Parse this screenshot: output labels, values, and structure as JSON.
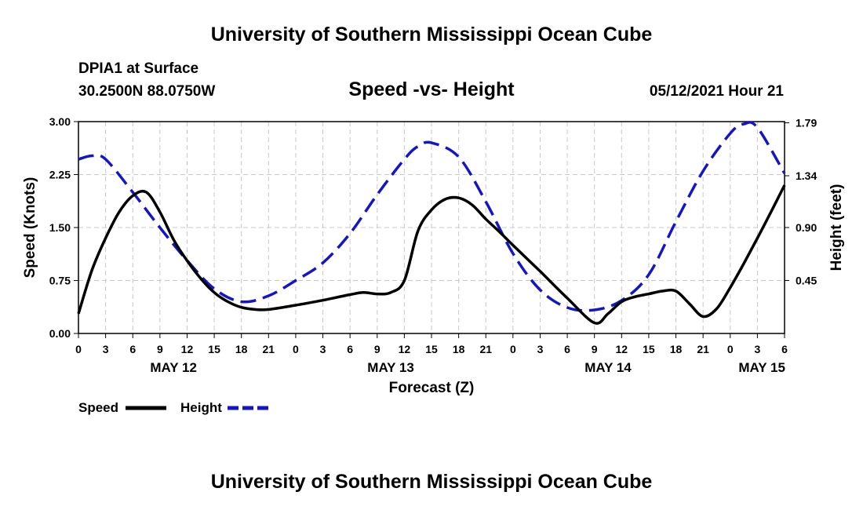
{
  "header": {
    "title": "University of Southern Mississippi Ocean Cube",
    "station": "DPIA1 at Surface",
    "coords": "30.2500N  88.0750W",
    "chart_title": "Speed -vs- Height",
    "datetime": "05/12/2021 Hour 21"
  },
  "footer": {
    "title": "University of Southern Mississippi Ocean Cube"
  },
  "legend": {
    "speed_label": "Speed",
    "height_label": "Height"
  },
  "colors": {
    "speed": "#000000",
    "height": "#1515c8",
    "grid": "#c8c8c8"
  },
  "chart_data": {
    "type": "line",
    "title": "Speed -vs- Height",
    "xlabel": "Forecast (Z)",
    "ylabel": "Speed (Knots)",
    "y2label": "Height (feet)",
    "xlim": [
      0,
      78
    ],
    "ylim": [
      0,
      3.0
    ],
    "y2lim": [
      0.0,
      1.8
    ],
    "grid": true,
    "x_tick_hours": [
      0,
      3,
      6,
      9,
      12,
      15,
      18,
      21,
      24,
      27,
      30,
      33,
      36,
      39,
      42,
      45,
      48,
      51,
      54,
      57,
      60,
      63,
      66,
      69,
      72,
      75,
      78
    ],
    "x_tick_labels": [
      "0",
      "3",
      "6",
      "9",
      "12",
      "15",
      "18",
      "21",
      "0",
      "3",
      "6",
      "9",
      "12",
      "15",
      "18",
      "21",
      "0",
      "3",
      "6",
      "9",
      "12",
      "15",
      "18",
      "21",
      "0",
      "3",
      "6"
    ],
    "day_labels": [
      {
        "hour": 10.5,
        "label": "MAY 12"
      },
      {
        "hour": 34.5,
        "label": "MAY 13"
      },
      {
        "hour": 58.5,
        "label": "MAY 14"
      },
      {
        "hour": 75.5,
        "label": "MAY 15"
      }
    ],
    "y_ticks": [
      0.0,
      0.75,
      1.5,
      2.25,
      3.0
    ],
    "y_tick_labels": [
      "0.00",
      "0.75",
      "1.50",
      "2.25",
      "3.00"
    ],
    "y2_ticks": [
      0.45,
      0.9,
      1.34,
      1.79
    ],
    "y2_tick_labels": [
      "0.45",
      "0.90",
      "1.34",
      "1.79"
    ],
    "series": [
      {
        "name": "Speed",
        "axis": "left",
        "x": [
          0,
          1.5,
          3,
          4.5,
          6,
          7.5,
          9,
          10.5,
          12,
          13.5,
          15,
          16.5,
          18,
          19.5,
          21,
          24,
          27,
          30,
          31.5,
          33,
          34.5,
          36,
          37.5,
          39,
          40.5,
          42,
          43.5,
          45,
          46.5,
          48,
          51,
          54,
          57,
          58.5,
          60,
          61.5,
          63,
          64.5,
          66,
          67.5,
          69,
          70.5,
          72,
          73.5,
          75,
          76.5,
          78
        ],
        "values": [
          0.28,
          0.9,
          1.35,
          1.72,
          1.95,
          2.0,
          1.72,
          1.33,
          1.03,
          0.78,
          0.58,
          0.45,
          0.37,
          0.34,
          0.34,
          0.4,
          0.47,
          0.55,
          0.58,
          0.56,
          0.58,
          0.75,
          1.45,
          1.75,
          1.9,
          1.92,
          1.82,
          1.62,
          1.44,
          1.25,
          0.88,
          0.5,
          0.15,
          0.28,
          0.45,
          0.52,
          0.56,
          0.6,
          0.6,
          0.42,
          0.24,
          0.35,
          0.65,
          0.99,
          1.35,
          1.72,
          2.1
        ]
      },
      {
        "name": "Height",
        "axis": "right",
        "x": [
          0,
          1.5,
          3,
          6,
          9,
          12,
          15,
          18,
          21,
          24,
          27,
          30,
          33,
          36,
          37.5,
          39,
          42,
          45,
          48,
          51,
          54,
          57,
          60,
          63,
          66,
          69,
          72,
          73.5,
          75,
          78
        ],
        "values": [
          1.48,
          1.51,
          1.48,
          1.2,
          0.9,
          0.62,
          0.38,
          0.27,
          0.32,
          0.45,
          0.6,
          0.85,
          1.18,
          1.48,
          1.59,
          1.62,
          1.5,
          1.12,
          0.68,
          0.37,
          0.22,
          0.2,
          0.28,
          0.5,
          0.95,
          1.38,
          1.7,
          1.78,
          1.75,
          1.36
        ]
      }
    ]
  }
}
